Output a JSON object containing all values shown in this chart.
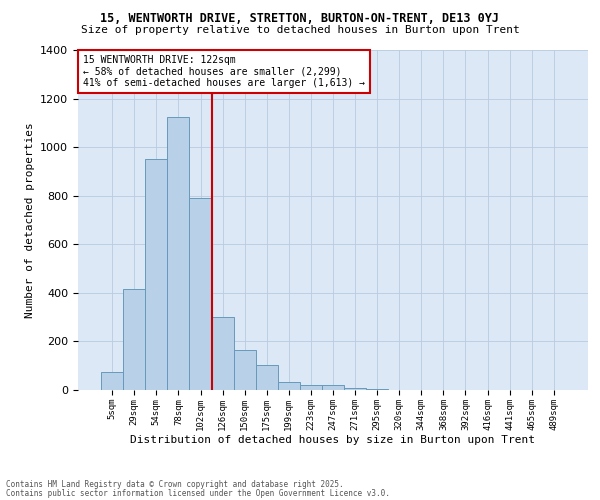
{
  "title1": "15, WENTWORTH DRIVE, STRETTON, BURTON-ON-TRENT, DE13 0YJ",
  "title2": "Size of property relative to detached houses in Burton upon Trent",
  "xlabel": "Distribution of detached houses by size in Burton upon Trent",
  "ylabel": "Number of detached properties",
  "categories": [
    "5sqm",
    "29sqm",
    "54sqm",
    "78sqm",
    "102sqm",
    "126sqm",
    "150sqm",
    "175sqm",
    "199sqm",
    "223sqm",
    "247sqm",
    "271sqm",
    "295sqm",
    "320sqm",
    "344sqm",
    "368sqm",
    "392sqm",
    "416sqm",
    "441sqm",
    "465sqm",
    "489sqm"
  ],
  "bar_heights": [
    75,
    415,
    950,
    1125,
    790,
    300,
    165,
    105,
    35,
    20,
    20,
    10,
    5,
    0,
    0,
    0,
    0,
    0,
    0,
    0,
    0
  ],
  "bar_color": "#b8d0e8",
  "bar_edge_color": "#6699bb",
  "vline_color": "#cc0000",
  "ylim": [
    0,
    1400
  ],
  "yticks": [
    0,
    200,
    400,
    600,
    800,
    1000,
    1200,
    1400
  ],
  "annotation_text": "15 WENTWORTH DRIVE: 122sqm\n← 58% of detached houses are smaller (2,299)\n41% of semi-detached houses are larger (1,613) →",
  "annotation_box_color": "#ffffff",
  "annotation_box_edge": "#cc0000",
  "bg_color": "#dce8f5",
  "footnote1": "Contains HM Land Registry data © Crown copyright and database right 2025.",
  "footnote2": "Contains public sector information licensed under the Open Government Licence v3.0.",
  "title_fontsize": 8.5,
  "subtitle_fontsize": 8,
  "ylabel_fontsize": 8,
  "xlabel_fontsize": 8,
  "ytick_fontsize": 8,
  "xtick_fontsize": 6.5
}
